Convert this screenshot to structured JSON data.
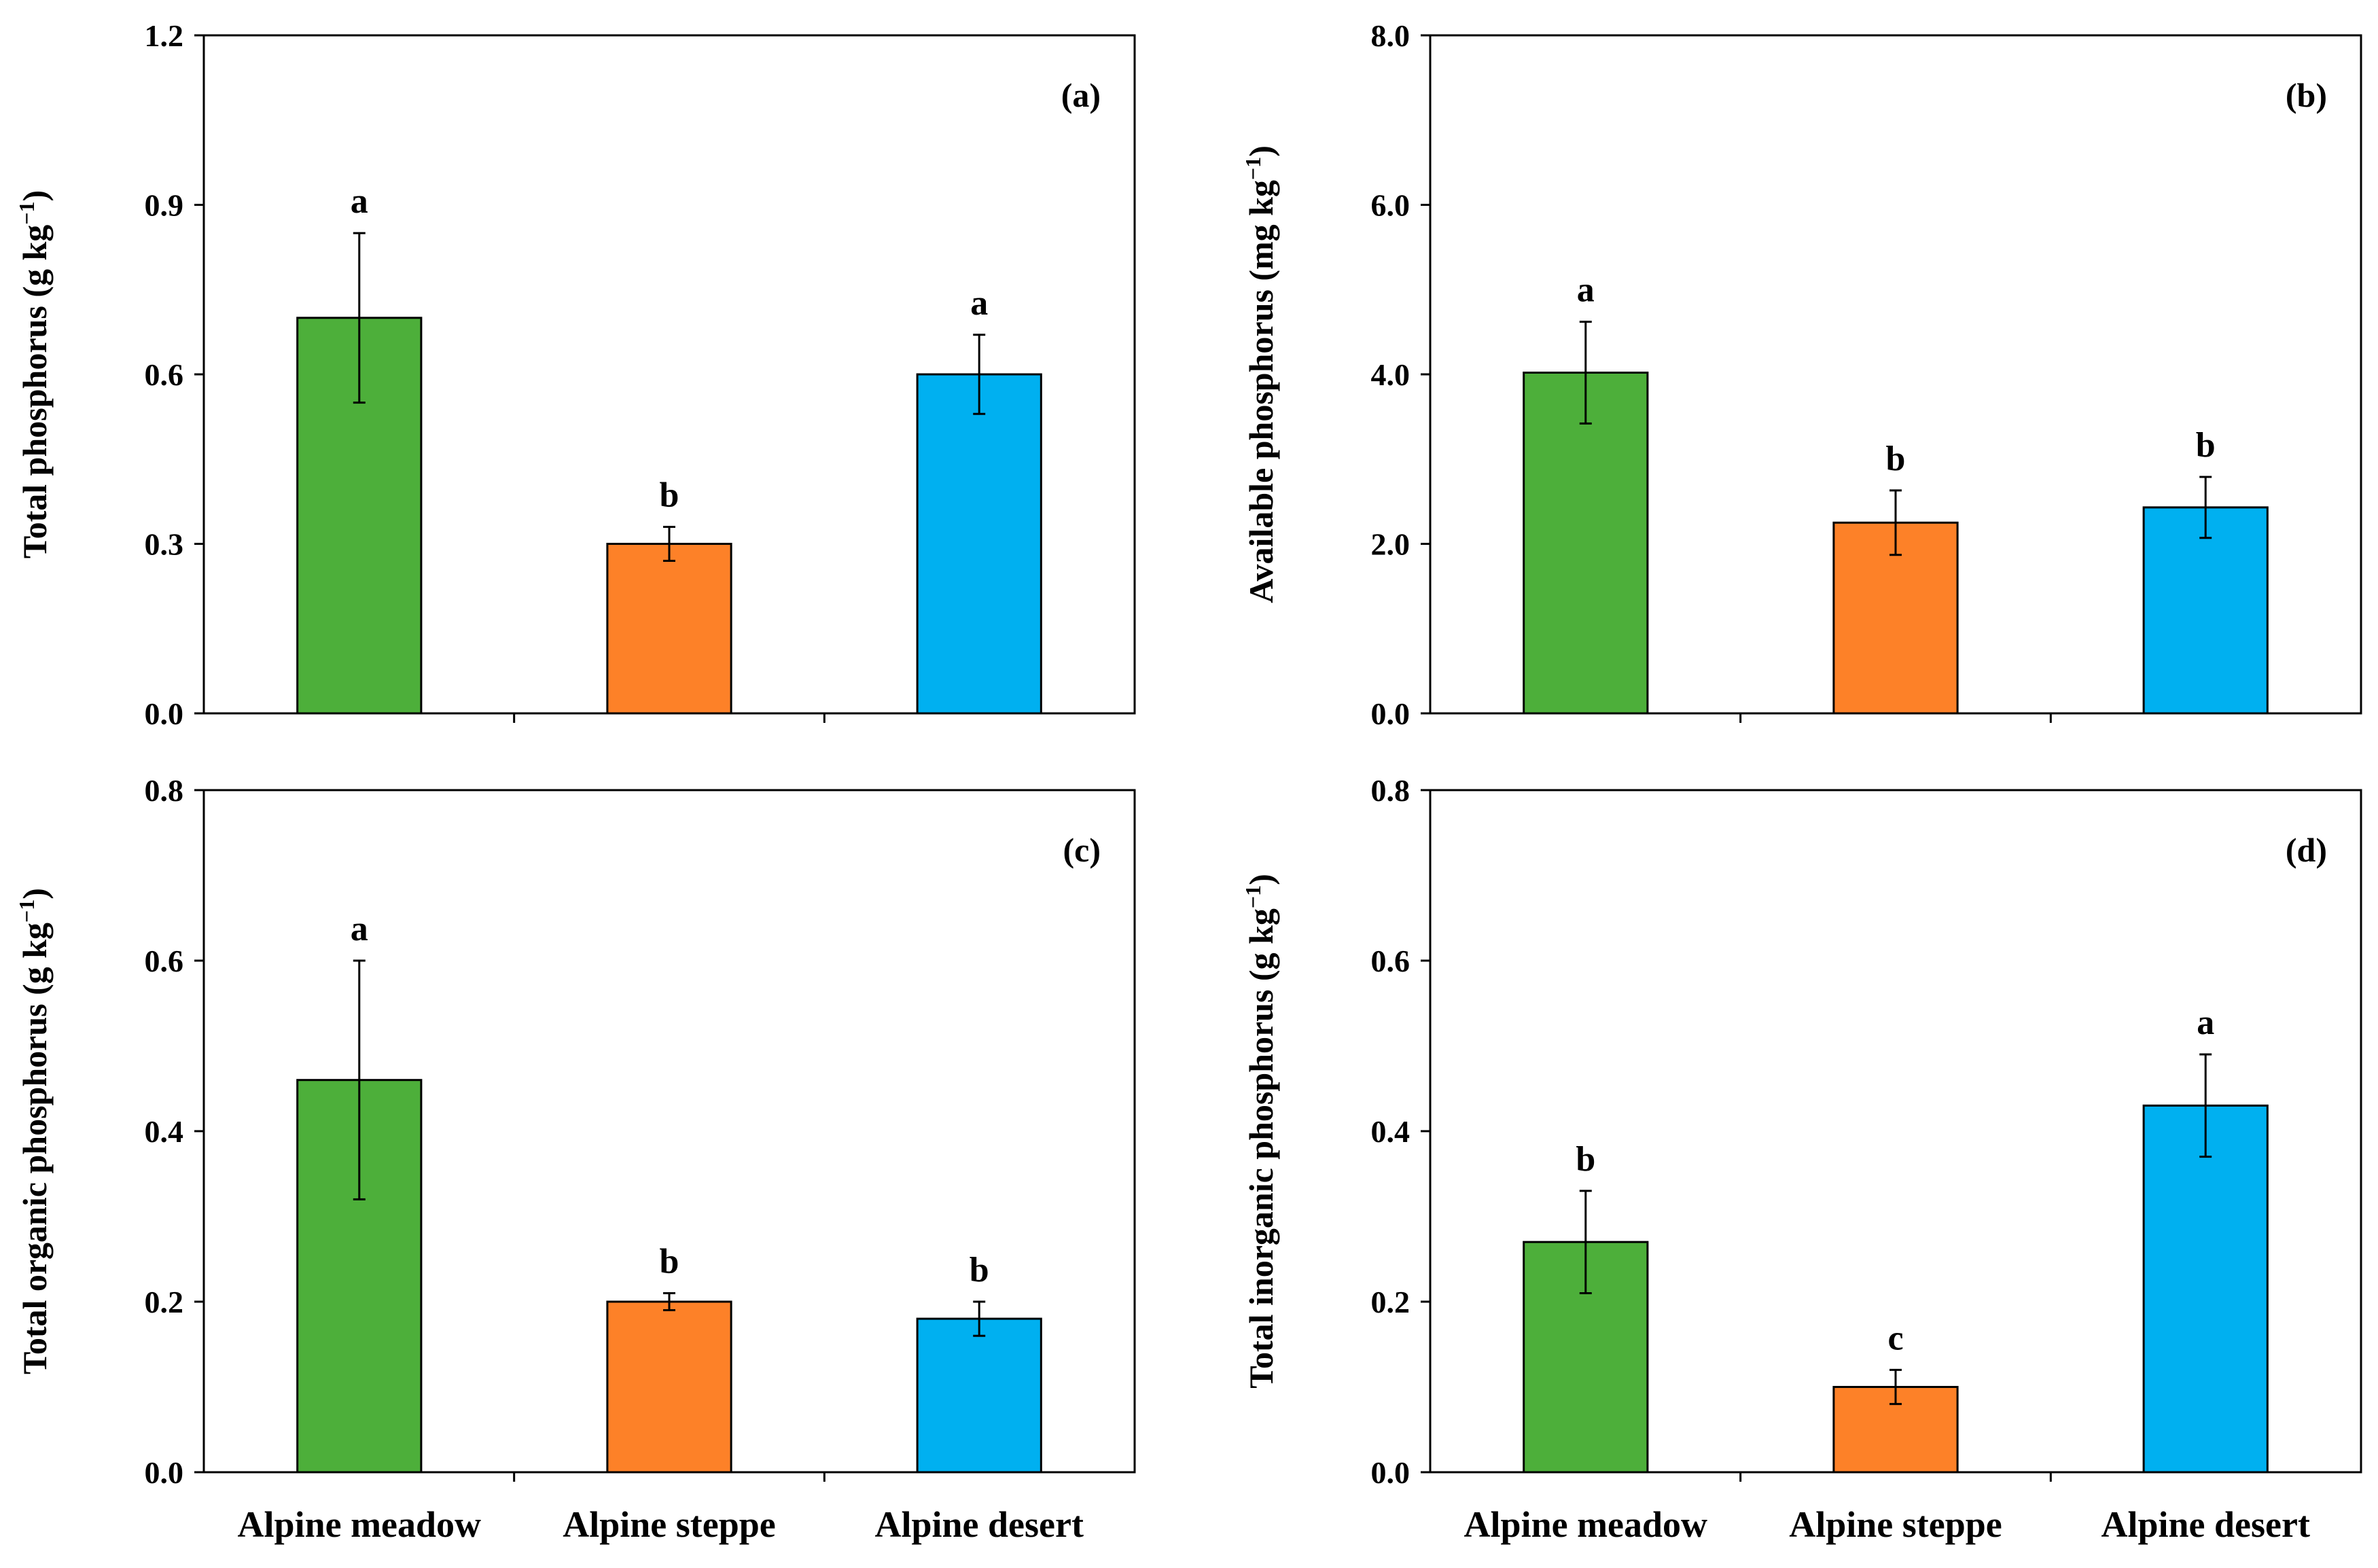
{
  "chart_data": [
    {
      "type": "bar",
      "panel_label": "(a)",
      "ylabel_main": "Total phosphorus (g kg",
      "ylabel_sup": "−1",
      "ylabel_end": ")",
      "ylim": [
        0,
        1.2
      ],
      "ytick_values": [
        0,
        0.3,
        0.6,
        0.9,
        1.2
      ],
      "ytick_labels": [
        "0.0",
        "0.3",
        "0.6",
        "0.9",
        "1.2"
      ],
      "categories": [
        "Alpine meadow",
        "Alpine steppe",
        "Alpine desert"
      ],
      "show_xlabels": false,
      "values": [
        0.7,
        0.3,
        0.6
      ],
      "errors": [
        0.15,
        0.03,
        0.07
      ],
      "letters": [
        "a",
        "b",
        "a"
      ]
    },
    {
      "type": "bar",
      "panel_label": "(b)",
      "ylabel_main": "Available phosphorus (mg kg",
      "ylabel_sup": "−1",
      "ylabel_end": ")",
      "ylim": [
        0,
        8.0
      ],
      "ytick_values": [
        0,
        2,
        4,
        6,
        8
      ],
      "ytick_labels": [
        "0.0",
        "2.0",
        "4.0",
        "6.0",
        "8.0"
      ],
      "categories": [
        "Alpine meadow",
        "Alpine steppe",
        "Alpine desert"
      ],
      "show_xlabels": false,
      "values": [
        4.02,
        2.25,
        2.43
      ],
      "errors": [
        0.6,
        0.38,
        0.36
      ],
      "letters": [
        "a",
        "b",
        "b"
      ]
    },
    {
      "type": "bar",
      "panel_label": "(c)",
      "ylabel_main": "Total organic phosphorus (g kg",
      "ylabel_sup": "−1",
      "ylabel_end": ")",
      "ylim": [
        0,
        0.8
      ],
      "ytick_values": [
        0,
        0.2,
        0.4,
        0.6,
        0.8
      ],
      "ytick_labels": [
        "0.0",
        "0.2",
        "0.4",
        "0.6",
        "0.8"
      ],
      "categories": [
        "Alpine meadow",
        "Alpine steppe",
        "Alpine desert"
      ],
      "show_xlabels": true,
      "values": [
        0.46,
        0.2,
        0.18
      ],
      "errors": [
        0.14,
        0.01,
        0.02
      ],
      "letters": [
        "a",
        "b",
        "b"
      ]
    },
    {
      "type": "bar",
      "panel_label": "(d)",
      "ylabel_main": "Total inorganic phosphorus (g kg",
      "ylabel_sup": "−1",
      "ylabel_end": ")",
      "ylim": [
        0,
        0.8
      ],
      "ytick_values": [
        0,
        0.2,
        0.4,
        0.6,
        0.8
      ],
      "ytick_labels": [
        "0.0",
        "0.2",
        "0.4",
        "0.6",
        "0.8"
      ],
      "categories": [
        "Alpine meadow",
        "Alpine steppe",
        "Alpine desert"
      ],
      "show_xlabels": true,
      "values": [
        0.27,
        0.1,
        0.43
      ],
      "errors": [
        0.06,
        0.02,
        0.06
      ],
      "letters": [
        "b",
        "c",
        "a"
      ]
    }
  ],
  "colors": {
    "Alpine meadow": "#4daf3a",
    "Alpine steppe": "#fd8128",
    "Alpine desert": "#00b0f0"
  }
}
